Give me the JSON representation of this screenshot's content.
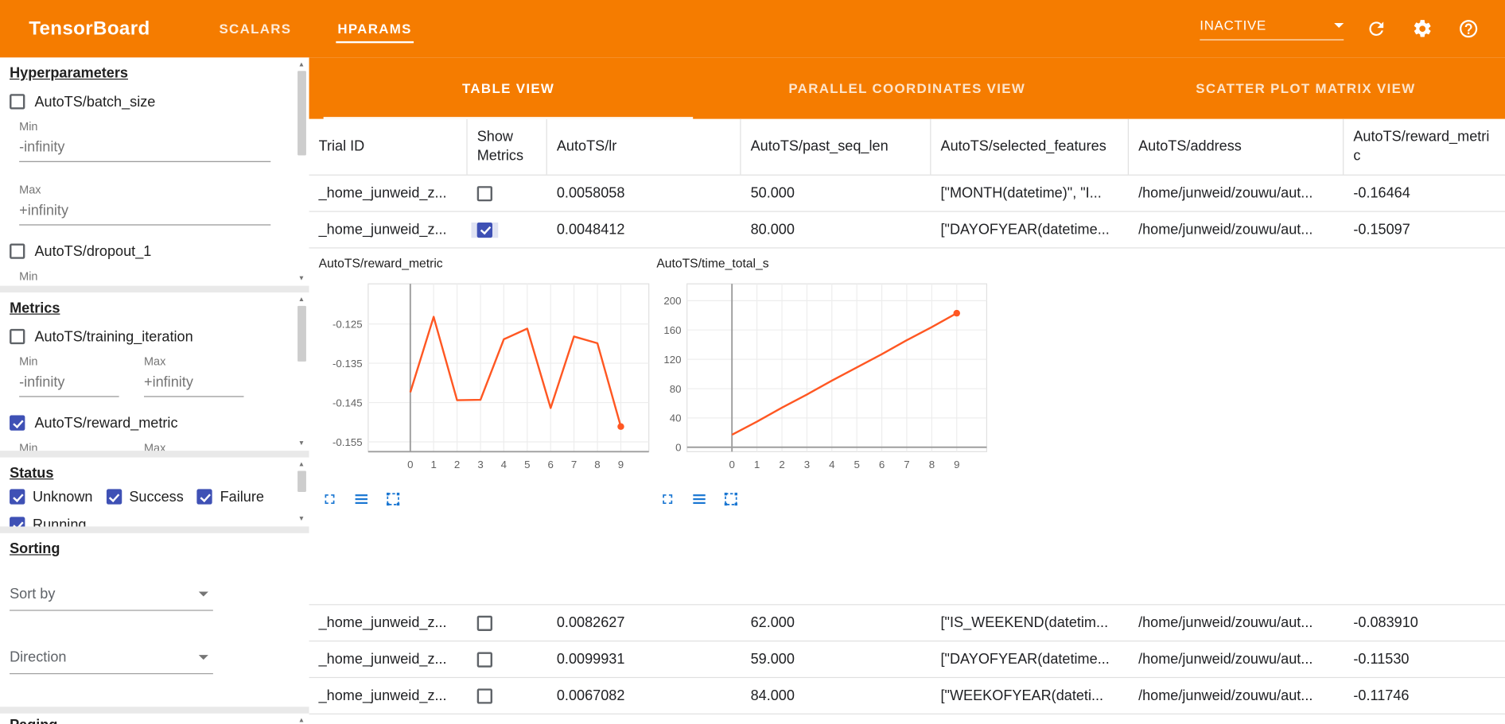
{
  "header": {
    "title": "TensorBoard",
    "tabs": [
      {
        "label": "SCALARS",
        "active": false
      },
      {
        "label": "HPARAMS",
        "active": true
      }
    ],
    "run_selector_value": "INACTIVE",
    "icons": [
      "dropdown-caret",
      "refresh",
      "settings",
      "help"
    ]
  },
  "sidebar": {
    "hyperparameters": {
      "heading": "Hyperparameters",
      "batch_size": {
        "label": "AutoTS/batch_size",
        "checked": false,
        "min_label": "Min",
        "min_value": "-infinity",
        "max_label": "Max",
        "max_value": "+infinity"
      },
      "dropout": {
        "label": "AutoTS/dropout_1",
        "checked": false,
        "min_label": "Min"
      }
    },
    "metrics": {
      "heading": "Metrics",
      "training_iteration": {
        "label": "AutoTS/training_iteration",
        "checked": false,
        "min_label": "Min",
        "min_value": "-infinity",
        "max_label": "Max",
        "max_value": "+infinity"
      },
      "reward_metric": {
        "label": "AutoTS/reward_metric",
        "checked": true,
        "min_label": "Min",
        "max_label": "Max"
      }
    },
    "status": {
      "heading": "Status",
      "options": [
        {
          "label": "Unknown",
          "checked": true
        },
        {
          "label": "Success",
          "checked": true
        },
        {
          "label": "Failure",
          "checked": true
        },
        {
          "label": "Running",
          "checked": true
        }
      ]
    },
    "sorting": {
      "heading": "Sorting",
      "sort_by_label": "Sort by",
      "direction_label": "Direction"
    },
    "paging": {
      "heading": "Paging"
    }
  },
  "main": {
    "view_tabs": [
      {
        "label": "TABLE VIEW",
        "active": true
      },
      {
        "label": "PARALLEL COORDINATES VIEW",
        "active": false
      },
      {
        "label": "SCATTER PLOT MATRIX VIEW",
        "active": false
      }
    ],
    "table": {
      "columns": [
        "Trial ID",
        "Show Metrics",
        "AutoTS/lr",
        "AutoTS/past_seq_len",
        "AutoTS/selected_features",
        "AutoTS/address",
        "AutoTS/reward_metric"
      ],
      "rows": [
        {
          "trial_id": "_home_junweid_z...",
          "show_metrics": false,
          "lr": "0.0058058",
          "past_seq_len": "50.000",
          "selected_features": "[\"MONTH(datetime)\", \"I...",
          "address": "/home/junweid/zouwu/aut...",
          "reward_metric": "-0.16464"
        },
        {
          "trial_id": "_home_junweid_z...",
          "show_metrics": true,
          "lr": "0.0048412",
          "past_seq_len": "80.000",
          "selected_features": "[\"DAYOFYEAR(datetime...",
          "address": "/home/junweid/zouwu/aut...",
          "reward_metric": "-0.15097"
        },
        {
          "trial_id": "_home_junweid_z...",
          "show_metrics": false,
          "lr": "0.0082627",
          "past_seq_len": "62.000",
          "selected_features": "[\"IS_WEEKEND(datetim...",
          "address": "/home/junweid/zouwu/aut...",
          "reward_metric": "-0.083910"
        },
        {
          "trial_id": "_home_junweid_z...",
          "show_metrics": false,
          "lr": "0.0099931",
          "past_seq_len": "59.000",
          "selected_features": "[\"DAYOFYEAR(datetime...",
          "address": "/home/junweid/zouwu/aut...",
          "reward_metric": "-0.11530"
        },
        {
          "trial_id": "_home_junweid_z...",
          "show_metrics": false,
          "lr": "0.0067082",
          "past_seq_len": "84.000",
          "selected_features": "[\"WEEKOFYEAR(dateti...",
          "address": "/home/junweid/zouwu/aut...",
          "reward_metric": "-0.11746"
        }
      ]
    }
  },
  "chart_data": [
    {
      "type": "line",
      "title": "AutoTS/reward_metric",
      "x": [
        0,
        1,
        2,
        3,
        4,
        5,
        6,
        7,
        8,
        9
      ],
      "values": [
        -0.1424,
        -0.1232,
        -0.1444,
        -0.1443,
        -0.1289,
        -0.1262,
        -0.1464,
        -0.1282,
        -0.1299,
        -0.1511
      ],
      "xticks": [
        0,
        1,
        2,
        3,
        4,
        5,
        6,
        7,
        8,
        9
      ],
      "yticks": [
        -0.155,
        -0.145,
        -0.135,
        -0.125
      ],
      "xlim": [
        -1.8,
        10.2
      ],
      "ylim": [
        -0.1575,
        -0.1148
      ],
      "grid": true,
      "legend": "none",
      "line_color": "#ff5722",
      "end_marker": true
    },
    {
      "type": "line",
      "title": "AutoTS/time_total_s",
      "x": [
        0,
        1,
        2,
        3,
        4,
        5,
        6,
        7,
        8,
        9
      ],
      "values": [
        17,
        35,
        54,
        72,
        91,
        109,
        127,
        146,
        164,
        183
      ],
      "xticks": [
        0,
        1,
        2,
        3,
        4,
        5,
        6,
        7,
        8,
        9
      ],
      "yticks": [
        0,
        40,
        80,
        120,
        160,
        200
      ],
      "xlim": [
        -1.8,
        10.2
      ],
      "ylim": [
        -6,
        223
      ],
      "xaxis_at": 0,
      "grid": true,
      "legend": "none",
      "line_color": "#ff5722",
      "end_marker": true
    }
  ],
  "colors": {
    "toolbar_orange": "#f57c00",
    "checkbox_checked": "#3f51b5",
    "chart_line": "#ff5722",
    "chart_tool_blue": "#1976d2"
  }
}
